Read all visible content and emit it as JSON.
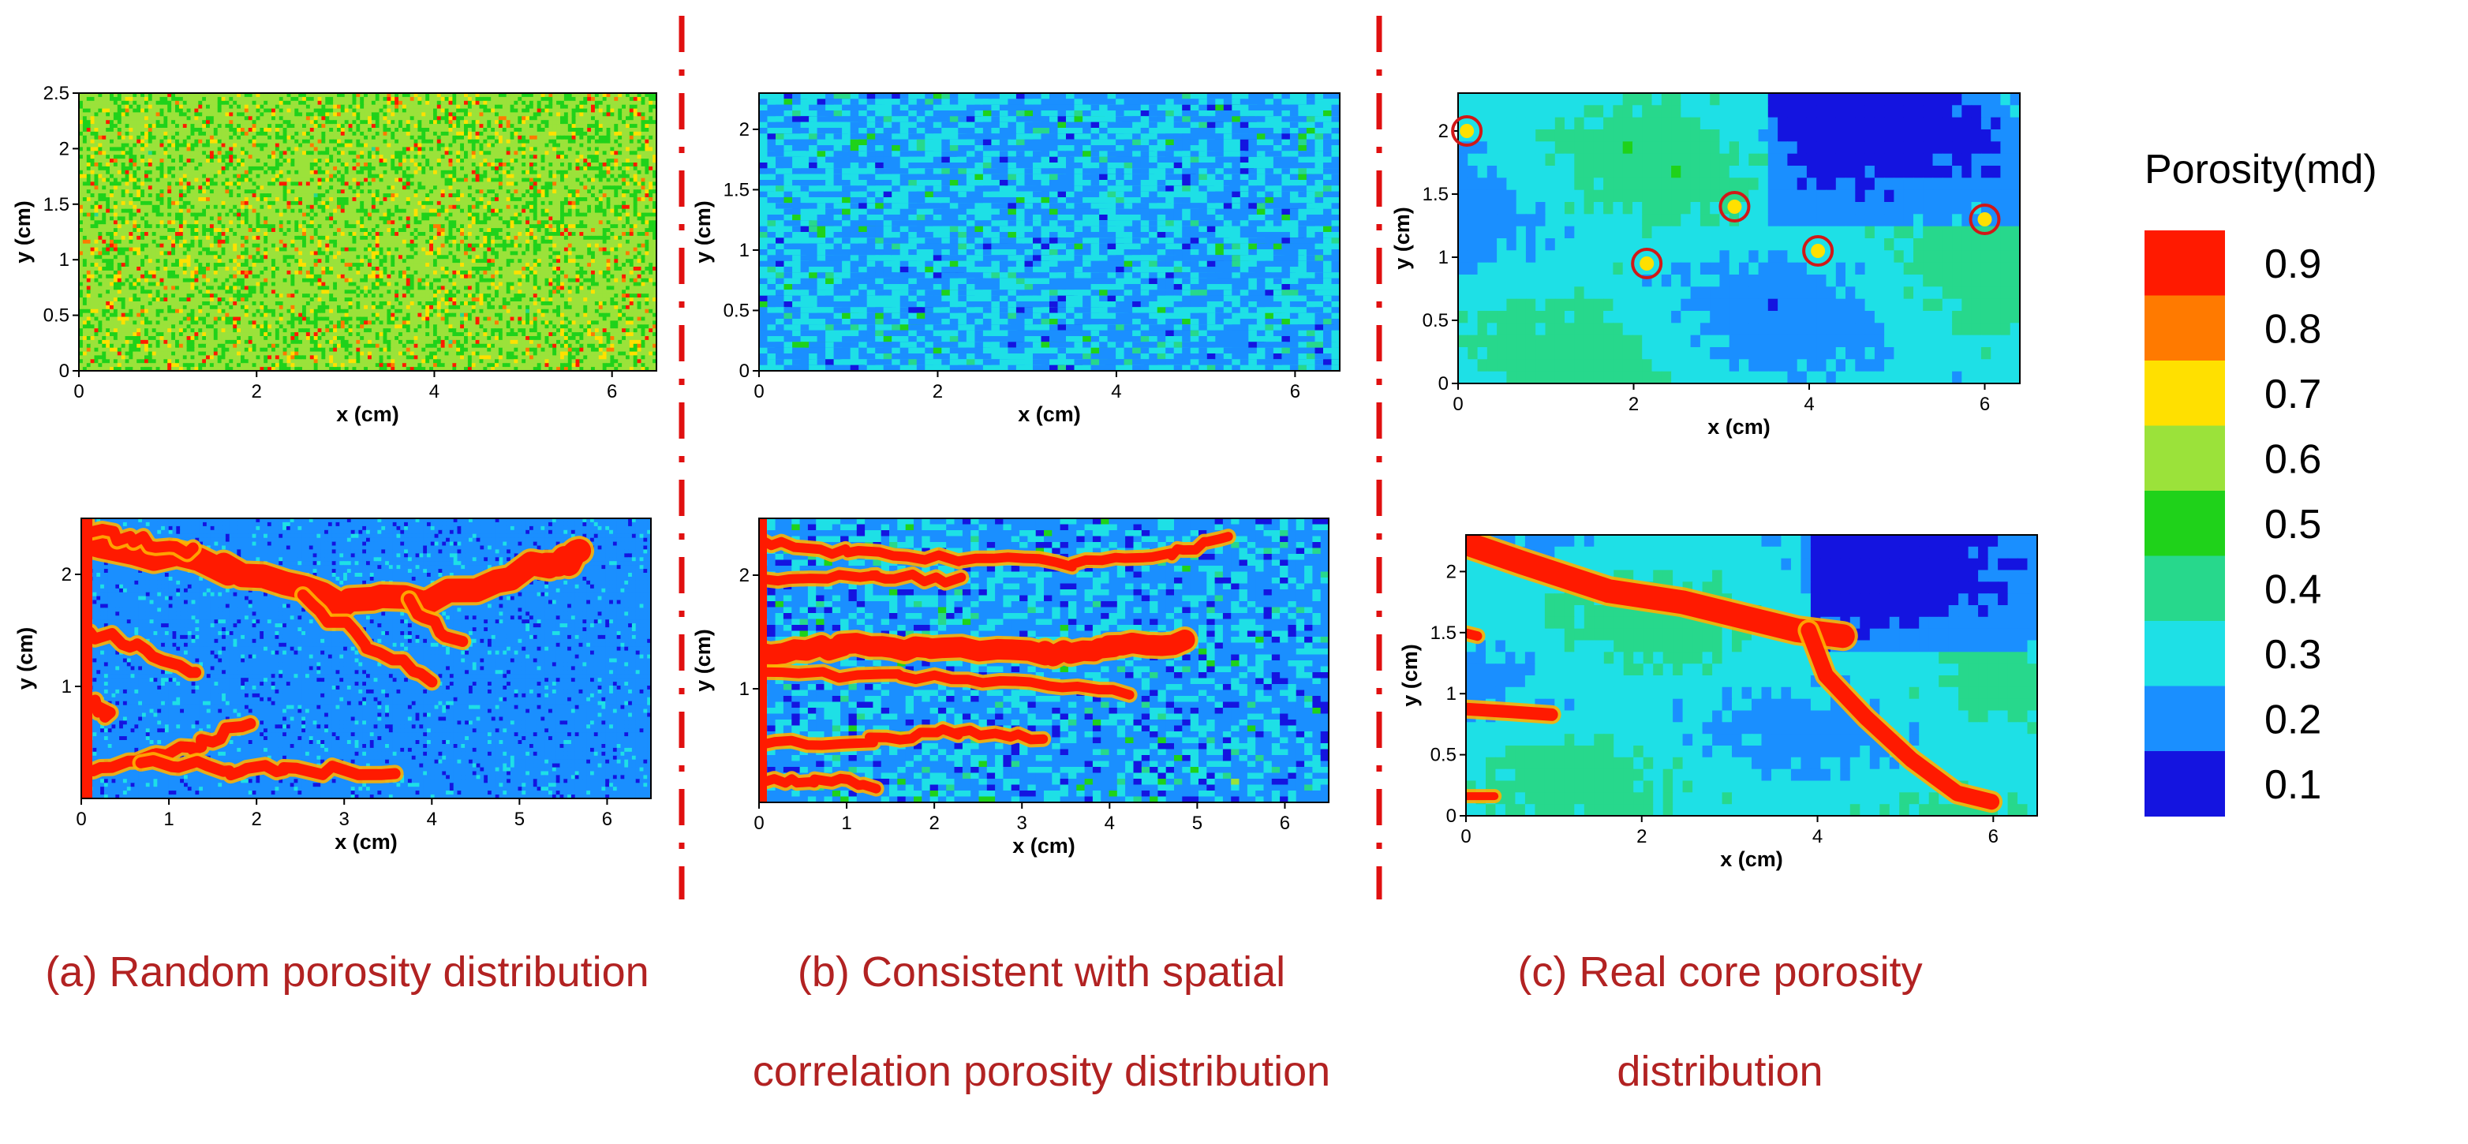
{
  "figure": {
    "captions": {
      "a": [
        "(a) Random porosity distribution"
      ],
      "b": [
        "(b) Consistent with spatial",
        "correlation porosity distribution"
      ],
      "c": [
        "(c) Real core porosity",
        "distribution"
      ]
    }
  },
  "chart_data": [
    {
      "id": "a-top",
      "type": "heatmap",
      "pattern": "random",
      "title": "",
      "xlabel": "x (cm)",
      "ylabel": "y (cm)",
      "xlim": [
        0,
        6.5
      ],
      "ylim": [
        0,
        2.5
      ],
      "xticks": [
        0,
        2,
        4,
        6
      ],
      "yticks": [
        0,
        0.5,
        1,
        1.5,
        2,
        2.5
      ],
      "ytick_labels": [
        "0",
        "0.5",
        "1",
        "1.5",
        "2",
        "2.5"
      ],
      "mean_porosity": 0.6
    },
    {
      "id": "a-bottom",
      "type": "heatmap",
      "pattern": "random-fingering",
      "title": "",
      "xlabel": "x (cm)",
      "ylabel": "y (cm)",
      "xlim": [
        0,
        6.5
      ],
      "ylim": [
        0,
        2.5
      ],
      "xticks": [
        0,
        1,
        2,
        3,
        4,
        5,
        6
      ],
      "yticks": [
        1,
        2
      ],
      "ytick_labels": [
        "1",
        "2"
      ],
      "mean_porosity": 0.25
    },
    {
      "id": "b-top",
      "type": "heatmap",
      "pattern": "correlated",
      "title": "",
      "xlabel": "x (cm)",
      "ylabel": "y (cm)",
      "xlim": [
        0,
        6.5
      ],
      "ylim": [
        0,
        2.3
      ],
      "xticks": [
        0,
        2,
        4,
        6
      ],
      "yticks": [
        0,
        0.5,
        1,
        1.5,
        2
      ],
      "ytick_labels": [
        "0",
        "0.5",
        "1",
        "1.5",
        "2"
      ],
      "mean_porosity": 0.25
    },
    {
      "id": "b-bottom",
      "type": "heatmap",
      "pattern": "correlated-fingering",
      "title": "",
      "xlabel": "x (cm)",
      "ylabel": "y (cm)",
      "xlim": [
        0,
        6.5
      ],
      "ylim": [
        0,
        2.5
      ],
      "xticks": [
        0,
        1,
        2,
        3,
        4,
        5,
        6
      ],
      "yticks": [
        1,
        2
      ],
      "ytick_labels": [
        "1",
        "2"
      ],
      "mean_porosity": 0.25
    },
    {
      "id": "c-top",
      "type": "heatmap",
      "pattern": "real-core",
      "title": "",
      "xlabel": "x (cm)",
      "ylabel": "y (cm)",
      "xlim": [
        0,
        6.4
      ],
      "ylim": [
        0,
        2.3
      ],
      "xticks": [
        0,
        2,
        4,
        6
      ],
      "yticks": [
        0,
        0.5,
        1,
        1.5,
        2
      ],
      "ytick_labels": [
        "0",
        "0.5",
        "1",
        "1.5",
        "2"
      ],
      "mean_porosity": 0.3,
      "highlight_points": [
        {
          "x": 0.1,
          "y": 2.0
        },
        {
          "x": 2.15,
          "y": 0.95
        },
        {
          "x": 3.15,
          "y": 1.4
        },
        {
          "x": 4.1,
          "y": 1.05
        },
        {
          "x": 6.0,
          "y": 1.3
        }
      ]
    },
    {
      "id": "c-bottom",
      "type": "heatmap",
      "pattern": "real-core-fracture",
      "title": "",
      "xlabel": "x (cm)",
      "ylabel": "y (cm)",
      "xlim": [
        0,
        6.5
      ],
      "ylim": [
        0,
        2.3
      ],
      "xticks": [
        0,
        2,
        4,
        6
      ],
      "yticks": [
        0,
        0.5,
        1,
        1.5,
        2
      ],
      "ytick_labels": [
        "0",
        "0.5",
        "1",
        "1.5",
        "2"
      ],
      "mean_porosity": 0.3
    }
  ],
  "colorbar": {
    "title": "Porosity(md)",
    "levels": [
      {
        "value": 0.9,
        "label": "0.9",
        "color": "#ff1a00"
      },
      {
        "value": 0.8,
        "label": "0.8",
        "color": "#ff7a00"
      },
      {
        "value": 0.7,
        "label": "0.7",
        "color": "#ffe000"
      },
      {
        "value": 0.6,
        "label": "0.6",
        "color": "#9be23a"
      },
      {
        "value": 0.5,
        "label": "0.5",
        "color": "#1fd21a"
      },
      {
        "value": 0.4,
        "label": "0.4",
        "color": "#27d88c"
      },
      {
        "value": 0.3,
        "label": "0.3",
        "color": "#1ee0e6"
      },
      {
        "value": 0.2,
        "label": "0.2",
        "color": "#1a8fff"
      },
      {
        "value": 0.1,
        "label": "0.1",
        "color": "#1414e0"
      }
    ]
  },
  "colors": {
    "divider": "#e01010",
    "caption": "#b22222",
    "highlight": "#d01818",
    "flow": "#ff1a00"
  }
}
